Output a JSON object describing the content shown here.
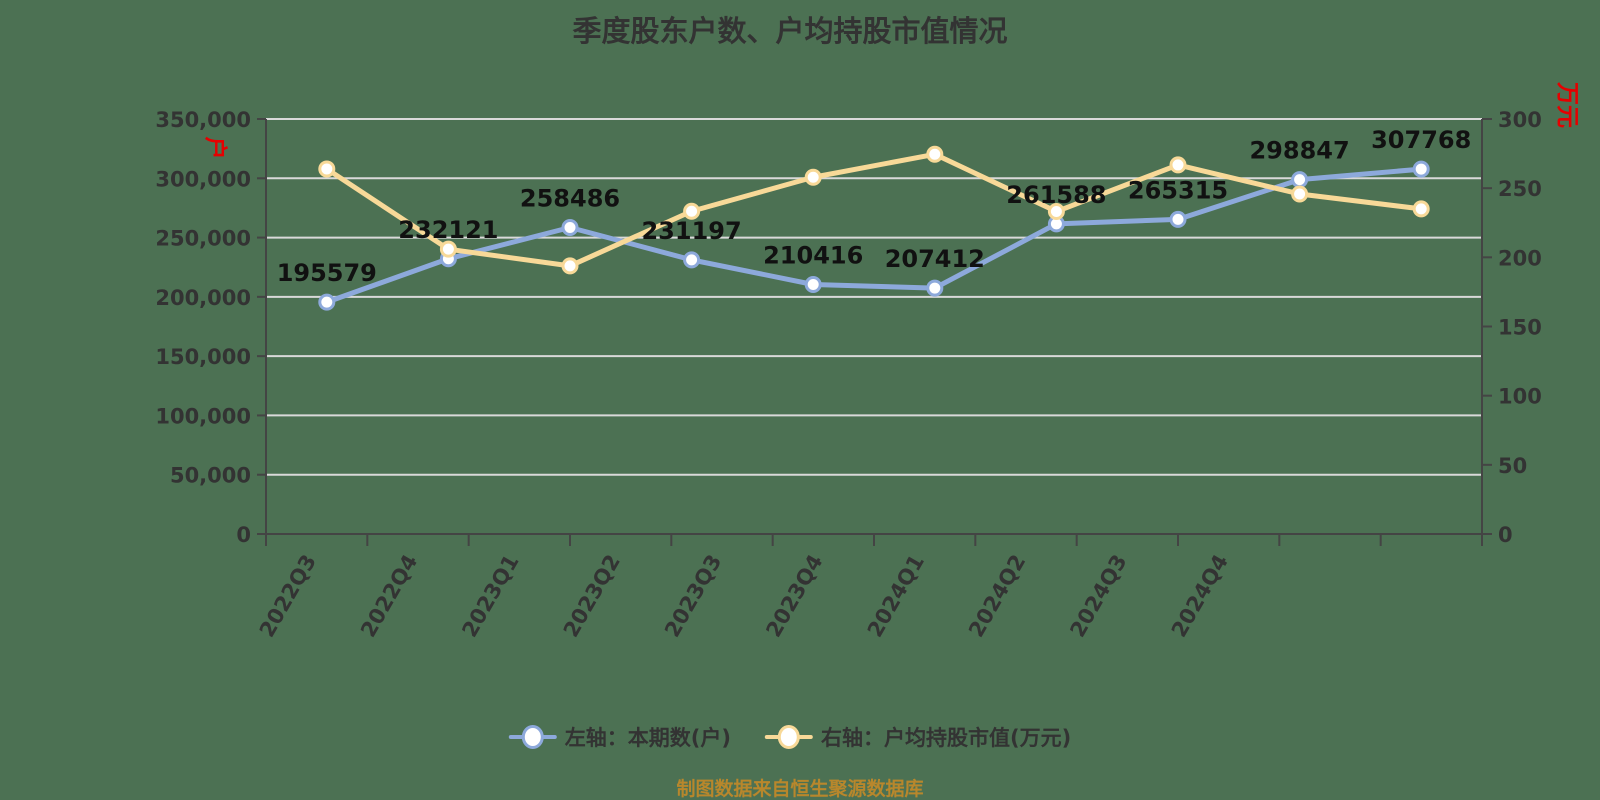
{
  "title": "季度股东户数、户均持股市值情况",
  "footer": "制图数据来自恒生聚源数据库",
  "colors": {
    "background": "#4c7153",
    "left_series": "#8DA9DB",
    "right_series": "#F8D998",
    "marker_fill": "#ffffff",
    "gridline": "#d9d9d9",
    "axis_line": "#444444",
    "tick_label": "#333333",
    "data_label": "#111111",
    "axis_name_red": "#e60000",
    "footer_text": "#b8872c"
  },
  "legend": [
    {
      "label": "左轴：本期数(户)",
      "color": "#8DA9DB"
    },
    {
      "label": "右轴：户均持股市值(万元)",
      "color": "#F8D998"
    }
  ],
  "chart_data": {
    "type": "line",
    "title": "季度股东户数、户均持股市值情况",
    "categories": [
      "2022Q3",
      "2022Q4",
      "2023Q1",
      "2023Q2",
      "2023Q3",
      "2023Q4",
      "2024Q1",
      "2024Q2",
      "2024Q3",
      "2024Q4"
    ],
    "series": [
      {
        "name": "左轴：本期数(户)",
        "axis": "left",
        "color": "#8DA9DB",
        "values": [
          195579,
          232121,
          258486,
          231197,
          210416,
          207412,
          261588,
          265315,
          298847,
          307768
        ],
        "show_labels": true
      },
      {
        "name": "右轴：户均持股市值(万元)",
        "axis": "right",
        "color": "#F8D998",
        "values": [
          263.9,
          205.9,
          193.8,
          233.3,
          257.9,
          274.5,
          233.1,
          266.8,
          245.8,
          235.0
        ],
        "show_labels": false
      }
    ],
    "left_axis": {
      "name": "户",
      "min": 0,
      "max": 350000,
      "tick_step": 50000,
      "tick_labels": [
        "0",
        "50,000",
        "100,000",
        "150,000",
        "200,000",
        "250,000",
        "300,000",
        "350,000"
      ]
    },
    "right_axis": {
      "name": "万元",
      "min": 0,
      "max": 300,
      "tick_step": 50,
      "tick_labels": [
        "0",
        "50",
        "100",
        "150",
        "200",
        "250",
        "300"
      ]
    },
    "grid": true,
    "legend_position": "bottom"
  }
}
